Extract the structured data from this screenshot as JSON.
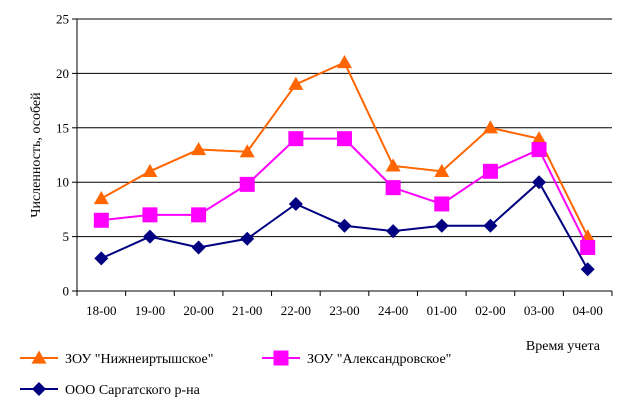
{
  "chart_data": {
    "type": "line",
    "title": "",
    "xlabel": "Время учета",
    "ylabel": "Численность, особей",
    "ylim": [
      0,
      25
    ],
    "yticks": [
      0,
      5,
      10,
      15,
      20,
      25
    ],
    "grid": "horizontal",
    "legend_position": "bottom",
    "categories": [
      "18-00",
      "19-00",
      "20-00",
      "21-00",
      "22-00",
      "23-00",
      "24-00",
      "01-00",
      "02-00",
      "03-00",
      "04-00"
    ],
    "series": [
      {
        "name": "ЗОУ \"Нижнеиртышское\"",
        "color": "#FF6600",
        "marker": "triangle",
        "values": [
          8.5,
          11,
          13,
          12.8,
          19,
          21,
          11.5,
          11,
          15,
          14,
          5
        ]
      },
      {
        "name": "ЗОУ \"Александровское\"",
        "color": "#FF00FF",
        "marker": "square",
        "values": [
          6.5,
          7,
          7,
          9.8,
          14,
          14,
          9.5,
          8,
          11,
          13,
          4
        ]
      },
      {
        "name": "ООО Саргатского р-на",
        "color": "#000080",
        "marker": "diamond",
        "values": [
          3,
          5,
          4,
          4.8,
          8,
          6,
          5.5,
          6,
          6,
          10,
          2
        ]
      }
    ]
  }
}
